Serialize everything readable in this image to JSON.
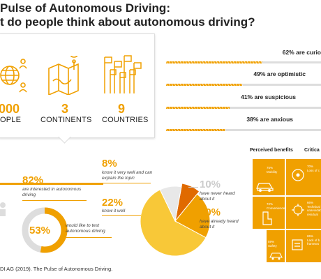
{
  "title": {
    "line1": "Pulse of Autonomous Driving:",
    "line2": "t do people think about autonomous driving?"
  },
  "stats": [
    {
      "value": "000",
      "label": "OPLE",
      "icon": "globe-people-icon"
    },
    {
      "value": "3",
      "label": "CONTINENTS",
      "icon": "map-pin-icon"
    },
    {
      "value": "9",
      "label": "COUNTRIES",
      "icon": "flags-icon"
    }
  ],
  "chart_data": [
    {
      "type": "bar",
      "categories": [
        "are curio",
        "are optimistic",
        "are suspicious",
        "are anxious"
      ],
      "values": [
        62,
        49,
        41,
        38
      ],
      "labels": [
        "62% are curio",
        "49% are optimistic",
        "41% are suspicious",
        "38% are anxious"
      ],
      "xlim": [
        0,
        100
      ]
    },
    {
      "type": "pie",
      "slices": [
        {
          "value": 8,
          "label": "8%",
          "note": "know it very well and can explain the topic"
        },
        {
          "value": 22,
          "label": "22%",
          "note": "know it well"
        },
        {
          "value": 60,
          "label": "60%",
          "note": "have already heard about it"
        },
        {
          "value": 10,
          "label": "10%",
          "note": "have never heard about it"
        }
      ]
    }
  ],
  "interest": {
    "value": "82%",
    "note": "are interested in autonomous driving",
    "donut_value": "53%",
    "donut_fraction": 0.53,
    "donut_note": "would like to test autonomous driving"
  },
  "perceived": {
    "header": "Perceived benefits",
    "tiles": [
      {
        "pct": "75%",
        "label": "Mobility",
        "icon": "person-icon"
      },
      {
        "pct": "72%",
        "label": "Convenience",
        "icon": "seat-icon"
      },
      {
        "pct": "59%",
        "label": "Safety",
        "icon": "car-icon"
      }
    ]
  },
  "critical": {
    "header": "Critica",
    "tiles": [
      {
        "pct": "70%",
        "label": "Loss of c"
      },
      {
        "pct": "66%",
        "label": "Technical unavoidab residual"
      },
      {
        "pct": "65%",
        "label": "Lack of b framewo"
      }
    ]
  },
  "source": "DI AG (2019). The Pulse of Autonomous Driving.",
  "colors": {
    "accent": "#f0a000",
    "dark_accent": "#e06a00",
    "light_accent": "#f8c838",
    "track": "#ddd",
    "grey": "#ccc"
  }
}
